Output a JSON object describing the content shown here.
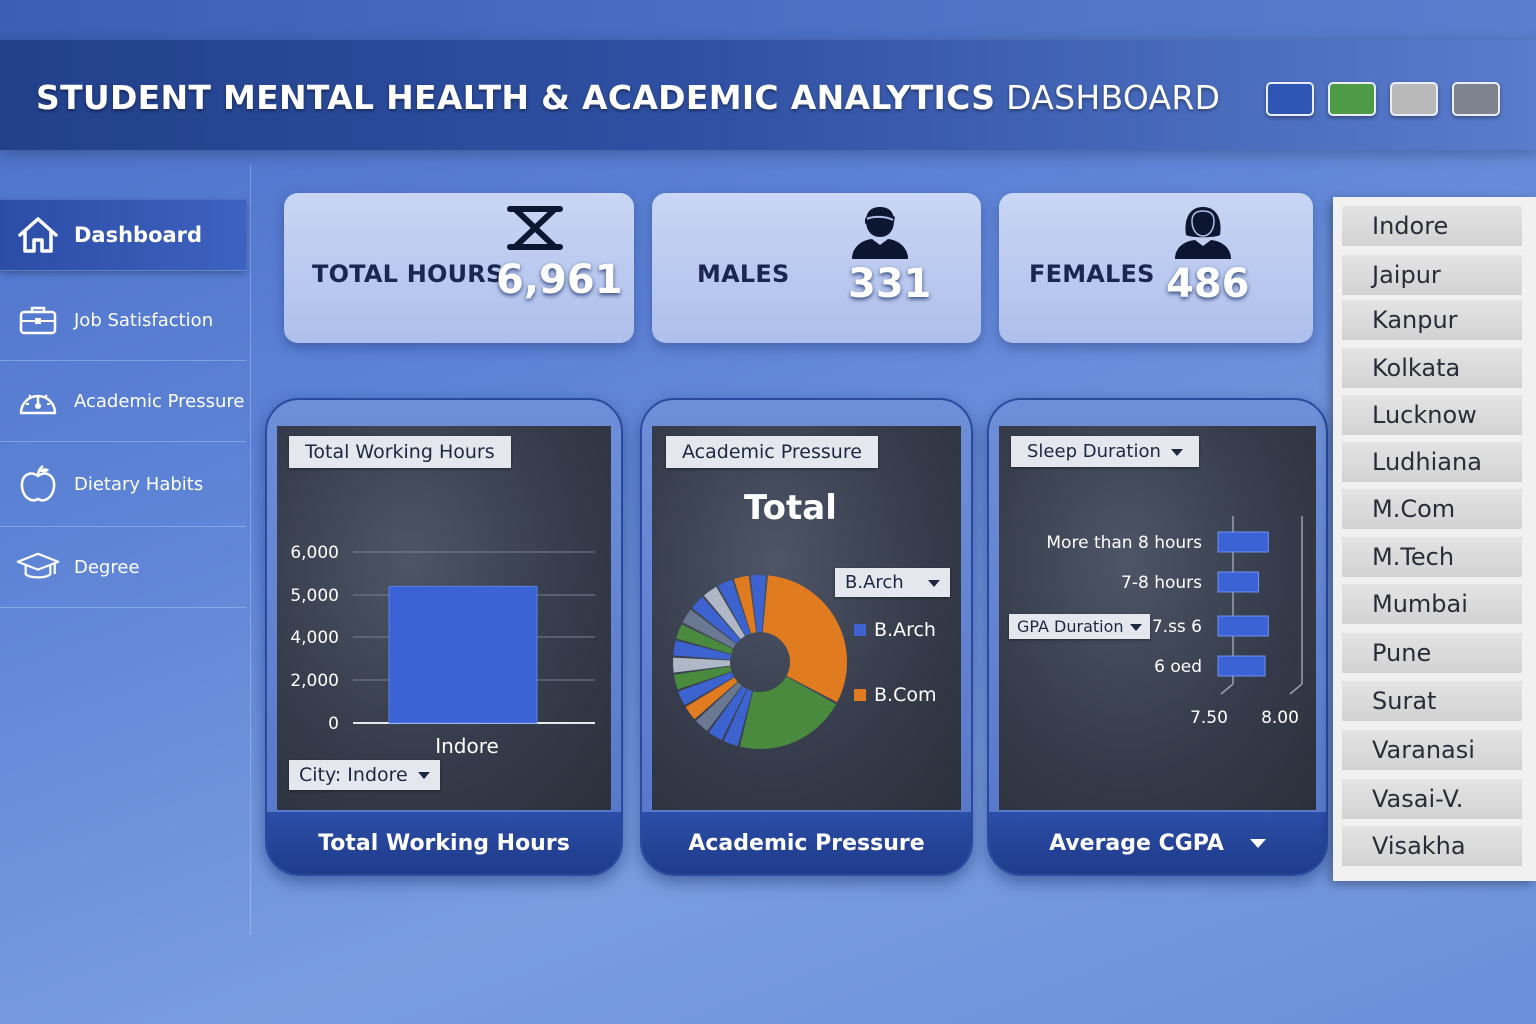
{
  "header": {
    "title_bold": "STUDENT MENTAL HEALTH & ACADEMIC ANALYTICS",
    "title_light": "DASHBOARD",
    "swatches": [
      "#2f55b5",
      "#4f9a45",
      "#b9b9b9",
      "#7d8490"
    ]
  },
  "sidebar": {
    "items": [
      {
        "label": "Dashboard",
        "icon": "home-icon"
      },
      {
        "label": "Job Satisfaction",
        "icon": "briefcase-icon"
      },
      {
        "label": "Academic Pressure",
        "icon": "gauge-icon"
      },
      {
        "label": "Dietary Habits",
        "icon": "apple-icon"
      },
      {
        "label": "Degree",
        "icon": "graduation-cap-icon"
      }
    ]
  },
  "kpis": {
    "total_hours": {
      "label": "TOTAL HOURS",
      "value": "6,961",
      "icon": "hourglass-icon"
    },
    "males": {
      "label": "MALES",
      "value": "331",
      "icon": "male-user-icon"
    },
    "females": {
      "label": "FEMALES",
      "value": "486",
      "icon": "female-user-icon"
    }
  },
  "panels": {
    "working_hours": {
      "tag": "Total Working Hours",
      "filter": "City: Indore",
      "footer": "Total Working Hours"
    },
    "academic_pressure": {
      "tag": "Academic Pressure",
      "heading": "Total",
      "filter": "B.Arch",
      "legend": [
        "B.Arch",
        "B.Com"
      ],
      "footer": "Academic Pressure"
    },
    "sleep": {
      "tag": "Sleep Duration",
      "gpa_filter": "GPA Duration",
      "footer": "Average CGPA"
    }
  },
  "chart_data": [
    {
      "type": "bar",
      "title": "Total Working Hours",
      "categories": [
        "Indore"
      ],
      "values": [
        5200
      ],
      "yticks": [
        "0",
        "2,000",
        "4,000",
        "5,000",
        "6,000"
      ],
      "ylim": [
        0,
        6000
      ],
      "color": "#3b63d6",
      "grid": true
    },
    {
      "type": "pie",
      "title": "Total",
      "legend": [
        "B.Arch",
        "B.Com"
      ],
      "slices": [
        {
          "value": 30,
          "color": "#e07b20"
        },
        {
          "value": 20,
          "color": "#4a8a3e"
        },
        {
          "value": 3,
          "color": "#3c63d0"
        },
        {
          "value": 3,
          "color": "#3c63d0"
        },
        {
          "value": 3,
          "color": "#6b7891"
        },
        {
          "value": 3,
          "color": "#e07b20"
        },
        {
          "value": 3,
          "color": "#3c63d0"
        },
        {
          "value": 3,
          "color": "#4a8a3e"
        },
        {
          "value": 3,
          "color": "#b0b7c6"
        },
        {
          "value": 3,
          "color": "#3c63d0"
        },
        {
          "value": 3,
          "color": "#4a8a3e"
        },
        {
          "value": 3,
          "color": "#6b7891"
        },
        {
          "value": 3,
          "color": "#3c63d0"
        },
        {
          "value": 3,
          "color": "#b0b7c6"
        },
        {
          "value": 3,
          "color": "#3c63d0"
        },
        {
          "value": 3,
          "color": "#e07b20"
        },
        {
          "value": 3,
          "color": "#3c63d0"
        }
      ]
    },
    {
      "type": "bar",
      "orientation": "horizontal",
      "title": "Sleep Duration",
      "categories": [
        "More than 8 hours",
        "7-8 hours",
        "7.ss 6",
        "6 oed"
      ],
      "values": [
        7.82,
        7.7,
        7.82,
        7.78
      ],
      "xticks": [
        "7.50",
        "8.00"
      ],
      "xlim": [
        7.2,
        8.05
      ],
      "color": "#3b63d6"
    }
  ],
  "cities": [
    "Indore",
    "Jaipur",
    "Kanpur",
    "Kolkata",
    "Lucknow",
    "Ludhiana",
    "M.Com",
    "M.Tech",
    "Mumbai",
    "Pune",
    "Surat",
    "Varanasi",
    "Vasai-V.",
    "Visakha"
  ]
}
